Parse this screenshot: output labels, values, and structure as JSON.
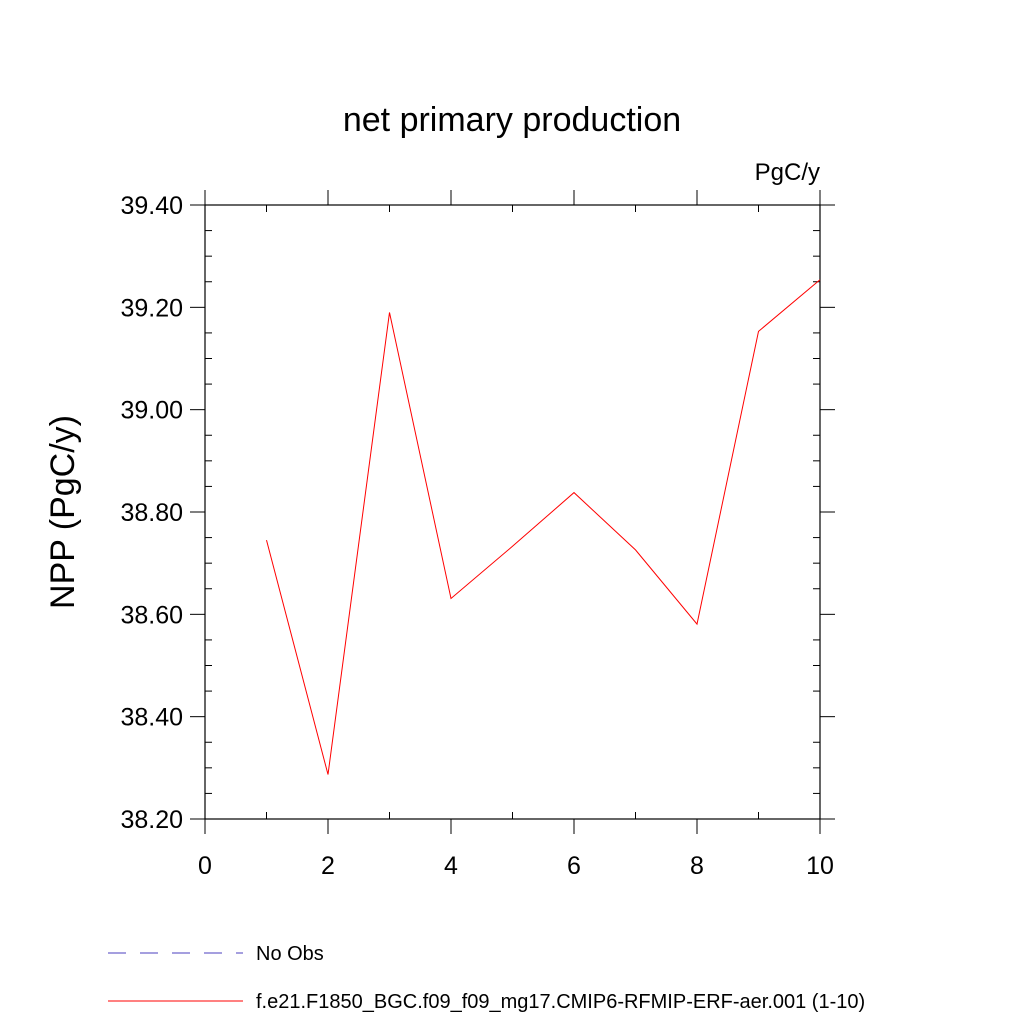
{
  "chart_data": {
    "type": "line",
    "title": "net primary production",
    "units": "PgC/y",
    "ylabel": "NPP  (PgC/y)",
    "xlabel": "",
    "xlim": [
      0,
      10
    ],
    "ylim": [
      38.2,
      39.4
    ],
    "x_ticks": [
      0,
      2,
      4,
      6,
      8,
      10
    ],
    "x_tick_labels": [
      "0",
      "2",
      "4",
      "6",
      "8",
      "10"
    ],
    "y_ticks": [
      38.2,
      38.4,
      38.6,
      38.8,
      39.0,
      39.2,
      39.4
    ],
    "y_tick_labels": [
      "38.20",
      "38.40",
      "38.60",
      "38.80",
      "39.00",
      "39.20",
      "39.40"
    ],
    "grid": false,
    "legend_position": "bottom",
    "series": [
      {
        "name": "f.e21.F1850_BGC.f09_f09_mg17.CMIP6-RFMIP-ERF-aer.001 (1-10)",
        "color": "#ff0000",
        "dash": "solid",
        "x": [
          1,
          2,
          3,
          4,
          5,
          6,
          7,
          8,
          9,
          10
        ],
        "y": [
          38.745,
          38.287,
          39.19,
          38.631,
          38.733,
          38.838,
          38.726,
          38.581,
          39.153,
          39.254
        ]
      }
    ],
    "legend": [
      {
        "label": "No Obs",
        "color": "#4b3fbf",
        "dash": "dashed"
      },
      {
        "label": "f.e21.F1850_BGC.f09_f09_mg17.CMIP6-RFMIP-ERF-aer.001 (1-10)",
        "color": "#ff0000",
        "dash": "solid"
      }
    ]
  }
}
